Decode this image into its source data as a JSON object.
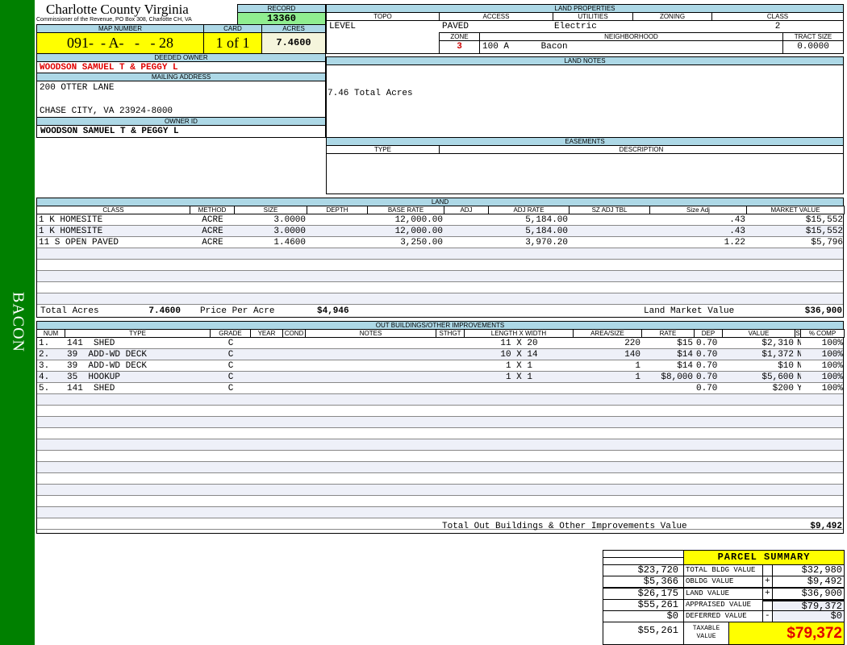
{
  "sidebar": {
    "label": "BACON",
    "color": "#008000"
  },
  "header": {
    "title": "Charlotte County Virginia",
    "subtitle": "Commissioner of the Revenue, PO Box 308, Charlotte CH, VA",
    "record_label": "RECORD",
    "record": "13360"
  },
  "parcel": {
    "map_number_label": "MAP NUMBER",
    "map_number": "091-  - A-   -   - 28",
    "card_label": "CARD",
    "card": "1 of 1",
    "acres_label": "ACRES",
    "acres": "7.4600"
  },
  "owner": {
    "deeded_label": "DEEDED OWNER",
    "deeded": "WOODSON SAMUEL T & PEGGY L",
    "mailing_label": "MAILING ADDRESS",
    "address1": "200 OTTER LANE",
    "address2": "CHASE CITY, VA 23924-8000",
    "owner_id_label": "OWNER ID",
    "owner_id": "WOODSON SAMUEL T & PEGGY L"
  },
  "land_properties": {
    "title": "LAND PROPERTIES",
    "topo_label": "TOPO",
    "access_label": "ACCESS",
    "utilities_label": "UTILITIES",
    "zoning_label": "ZONING",
    "class_label": "CLASS",
    "topo": "LEVEL",
    "access": "PAVED",
    "utilities": "Electric",
    "zoning": "",
    "class": "2",
    "zone_label": "ZONE",
    "neighborhood_label": "NEIGHBORHOOD",
    "tract_label": "TRACT SIZE",
    "zone": "3",
    "neighborhood": "100 A      Bacon",
    "tract": "0.0000"
  },
  "land_notes": {
    "title": "LAND NOTES",
    "text": "7.46 Total Acres"
  },
  "easements": {
    "title": "EASEMENTS",
    "type_label": "TYPE",
    "desc_label": "DESCRIPTION"
  },
  "land": {
    "title": "LAND",
    "columns": [
      "CLASS",
      "METHOD",
      "SIZE",
      "DEPTH",
      "BASE RATE",
      "ADJ",
      "ADJ RATE",
      "SZ ADJ TBL",
      "Size Adj",
      "MARKET VALUE"
    ],
    "rows": [
      [
        "1 K HOMESITE",
        "ACRE",
        "3.0000",
        "",
        "12,000.00",
        "",
        "5,184.00",
        "",
        ".43",
        "$15,552"
      ],
      [
        "1 K HOMESITE",
        "ACRE",
        "3.0000",
        "",
        "12,000.00",
        "",
        "5,184.00",
        "",
        ".43",
        "$15,552"
      ],
      [
        "11 S OPEN PAVED",
        "ACRE",
        "1.4600",
        "",
        "3,250.00",
        "",
        "3,970.20",
        "",
        "1.22",
        "$5,796"
      ]
    ],
    "total_acres_label": "Total Acres",
    "total_acres": "7.4600",
    "price_label": "Price Per Acre",
    "price": "$4,946",
    "market_label": "Land Market Value",
    "market": "$36,900"
  },
  "outbuildings": {
    "title": "OUT BUILDINGS/OTHER IMPROVEMENTS",
    "columns": [
      "NUM",
      "TYPE",
      "GRADE",
      "YEAR",
      "COND",
      "NOTES",
      "STHGT",
      "LENGTH X WIDTH",
      "AREA/SIZE",
      "RATE",
      "DEP",
      "VALUE",
      "S",
      "% COMP"
    ],
    "rows": [
      [
        "1.",
        "141  SHED",
        "C",
        "",
        "",
        "",
        "",
        "11 X 20",
        "220",
        "$15",
        "0.70",
        "$2,310",
        "N",
        "100%"
      ],
      [
        "2.",
        "39  ADD-WD DECK",
        "C",
        "",
        "",
        "",
        "",
        "10 X 14",
        "140",
        "$14",
        "0.70",
        "$1,372",
        "N",
        "100%"
      ],
      [
        "3.",
        "39  ADD-WD DECK",
        "C",
        "",
        "",
        "",
        "",
        "1 X 1",
        "1",
        "$14",
        "0.70",
        "$10",
        "N",
        "100%"
      ],
      [
        "4.",
        "35  HOOKUP",
        "C",
        "",
        "",
        "",
        "",
        "1 X 1",
        "1",
        "$8,000",
        "0.70",
        "$5,600",
        "N",
        "100%"
      ],
      [
        "5.",
        "141  SHED",
        "C",
        "",
        "",
        "",
        "",
        "",
        "",
        "",
        "0.70",
        "$200",
        "Y",
        "100%"
      ]
    ],
    "total_label": "Total Out Buildings & Other Improvements Value",
    "total": "$9,492"
  },
  "summary": {
    "title": "PARCEL SUMMARY",
    "rows": [
      {
        "prior": "$23,720",
        "label": "TOTAL BLDG VALUE",
        "op": "",
        "value": "$32,980"
      },
      {
        "prior": "$5,366",
        "label": "OBLDG VALUE",
        "op": "+",
        "value": "$9,492"
      },
      {
        "prior": "$26,175",
        "label": "LAND VALUE",
        "op": "+",
        "value": "$36,900"
      },
      {
        "prior": "$55,261",
        "label": "APPRAISED VALUE",
        "op": "",
        "value": "$79,372"
      },
      {
        "prior": "$0",
        "label": "DEFERRED VALUE",
        "op": "-",
        "value": "$0"
      }
    ],
    "taxable_prior": "$55,261",
    "taxable_label": "TAXABLE VALUE",
    "taxable": "$79,372"
  },
  "colors": {
    "label_bg": "#add8e6",
    "highlight": "#ffff00",
    "record_bg": "#90ee90",
    "owner_red": "#e00000"
  }
}
